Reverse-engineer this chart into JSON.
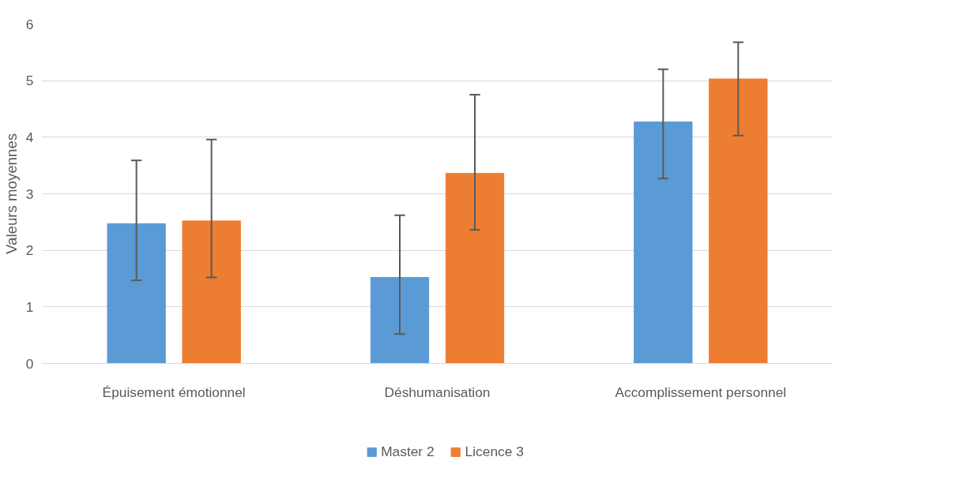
{
  "chart_data": {
    "type": "bar",
    "ylabel": "Valeurs moyennes",
    "categories": [
      "Épuisement émotionnel",
      "Déshumanisation",
      "Accomplissement personnel"
    ],
    "series": [
      {
        "name": "Master 2",
        "color": "#5b9bd5",
        "values": [
          2.47,
          1.52,
          4.27
        ],
        "errors": [
          [
            1.47,
            3.59
          ],
          [
            0.52,
            2.62
          ],
          [
            3.27,
            5.2
          ]
        ]
      },
      {
        "name": "Licence 3",
        "color": "#ed7d31",
        "values": [
          2.52,
          3.36,
          5.03
        ],
        "errors": [
          [
            1.52,
            3.96
          ],
          [
            2.36,
            4.75
          ],
          [
            4.03,
            5.68
          ]
        ]
      }
    ],
    "ylim": [
      0,
      6
    ],
    "yticks": [
      0,
      1,
      2,
      3,
      4,
      5,
      6
    ],
    "grid": "y",
    "legend": "bottom"
  }
}
